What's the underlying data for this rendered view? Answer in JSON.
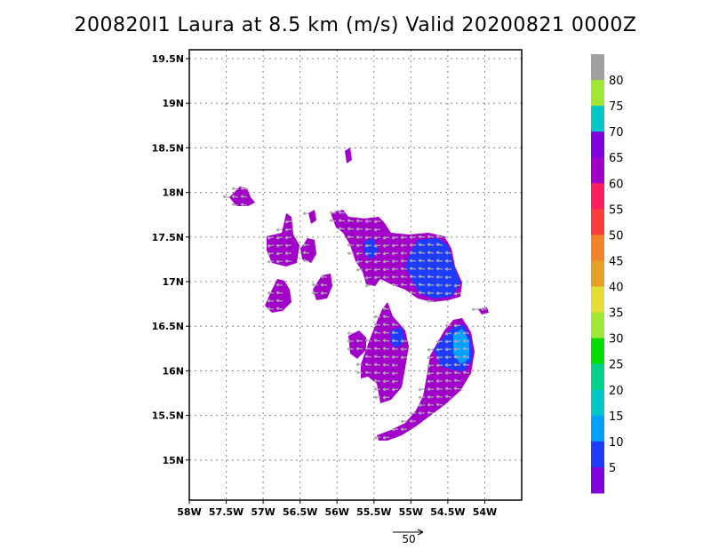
{
  "title": "200820I1 Laura at 8.5 km (m/s) Valid 20200821 0000Z",
  "map": {
    "lat_ticks": [
      "19.5N",
      "19N",
      "18.5N",
      "18N",
      "17.5N",
      "17N",
      "16.5N",
      "16N",
      "15.5N",
      "15N"
    ],
    "lon_ticks": [
      "58W",
      "57.5W",
      "57W",
      "56.5W",
      "56W",
      "55.5W",
      "55W",
      "54.5W",
      "54W"
    ],
    "lon_range": [
      -58.0,
      -53.5
    ],
    "lat_range": [
      14.55,
      19.6
    ],
    "grid": true
  },
  "colorbar": {
    "labels": [
      "80",
      "75",
      "70",
      "65",
      "60",
      "55",
      "50",
      "45",
      "40",
      "35",
      "30",
      "25",
      "20",
      "15",
      "10",
      "5"
    ],
    "colors": [
      "#a0a0a0",
      "#a0e632",
      "#00c8c8",
      "#8200dc",
      "#a000c8",
      "#ff1e64",
      "#ff3c3c",
      "#f08228",
      "#e6a028",
      "#e6dc32",
      "#a0e632",
      "#00dc00",
      "#00d28c",
      "#00c8c8",
      "#00a0ff",
      "#1e3cff",
      "#8200dc"
    ]
  },
  "reference_vector": {
    "label": "50"
  },
  "colors": {
    "weak": "#a000c8",
    "moderate": "#8200dc",
    "strong": "#1e3cff",
    "stronger": "#00a0ff",
    "arrow": "#aaaaaa"
  }
}
